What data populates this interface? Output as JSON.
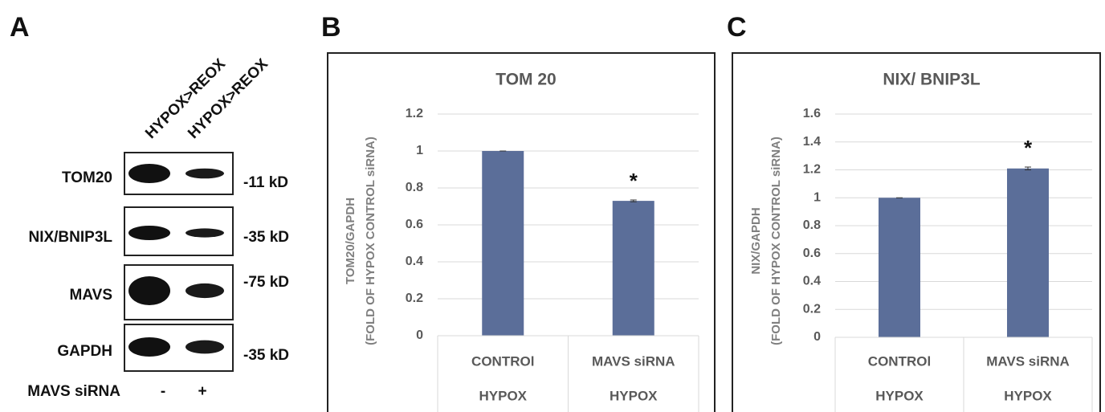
{
  "panels": [
    "A",
    "B",
    "C"
  ],
  "blot": {
    "lanes": [
      "HYPOX>REOX",
      "HYPOX>REOX"
    ],
    "rows": [
      {
        "label": "TOM20",
        "size": "-11 kD"
      },
      {
        "label": "NIX/BNIP3L",
        "size": "-35 kD"
      },
      {
        "label": "MAVS",
        "size": "-75 kD"
      },
      {
        "label": "GAPDH",
        "size": "-35 kD"
      }
    ],
    "treatment": {
      "label": "MAVS siRNA",
      "values": [
        "-",
        "+"
      ]
    }
  },
  "chart_data": [
    {
      "type": "bar",
      "title": "TOM 20",
      "y_label": [
        "TOM20/GAPDH",
        "(FOLD OF HYPOX CONTROL siRNA)"
      ],
      "categories": [
        "CONTROl",
        "MAVS siRNA"
      ],
      "groups": [
        "HYPOX",
        "HYPOX"
      ],
      "values": [
        1,
        0.73
      ],
      "errors": [
        0,
        0.005
      ],
      "significance": [
        null,
        "*"
      ],
      "color": "#5b6e99",
      "ylim": [
        0,
        1.2
      ],
      "yticks": [
        0,
        0.2,
        0.4,
        0.6,
        0.8,
        1,
        1.2
      ],
      "grid": true
    },
    {
      "type": "bar",
      "title": "NIX/ BNIP3L",
      "y_label": [
        "NIX/GAPDH",
        "(FOLD OF HYPOX CONTROL siRNA)"
      ],
      "categories": [
        "CONTROl",
        "MAVS siRNA"
      ],
      "groups": [
        "HYPOX",
        "HYPOX"
      ],
      "values": [
        1,
        1.21
      ],
      "errors": [
        0,
        0.01
      ],
      "significance": [
        null,
        "*"
      ],
      "color": "#5b6e99",
      "ylim": [
        0,
        1.6
      ],
      "yticks": [
        0,
        0.2,
        0.4,
        0.6,
        0.8,
        1,
        1.2,
        1.4,
        1.6
      ],
      "grid": true
    }
  ]
}
